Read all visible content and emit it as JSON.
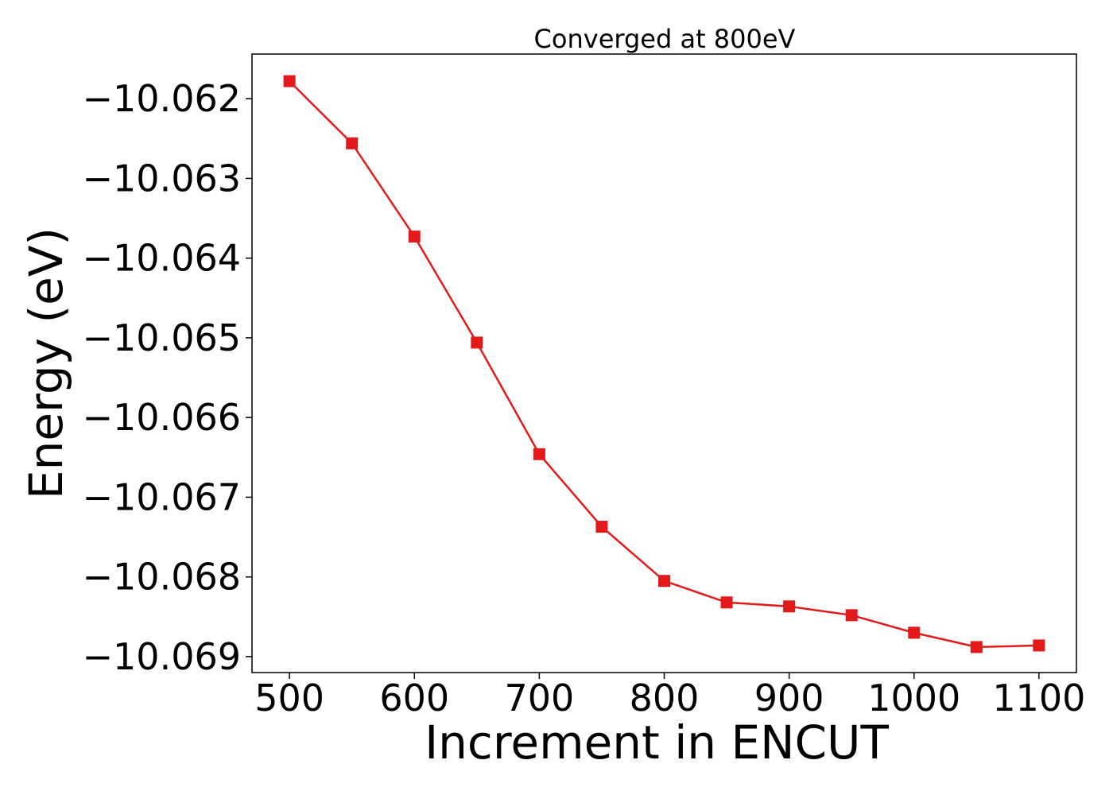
{
  "chart_data": {
    "type": "line",
    "title": "Converged at 800eV",
    "xlabel": "Increment in ENCUT",
    "ylabel": "Energy (eV)",
    "xlim": [
      470,
      1130
    ],
    "ylim": [
      -10.0692,
      -10.06144
    ],
    "xticks": [
      500,
      600,
      700,
      800,
      900,
      1000,
      1100
    ],
    "yticks": [
      -10.062,
      -10.063,
      -10.064,
      -10.065,
      -10.066,
      -10.067,
      -10.068,
      -10.069
    ],
    "ytick_labels": [
      "−10.062",
      "−10.063",
      "−10.064",
      "−10.065",
      "−10.066",
      "−10.067",
      "−10.068",
      "−10.069"
    ],
    "grid": false,
    "series": [
      {
        "color": "#e31a1c",
        "marker": "square",
        "x": [
          500,
          550,
          600,
          650,
          700,
          750,
          800,
          850,
          900,
          950,
          1000,
          1050,
          1100
        ],
        "y": [
          -10.06178,
          -10.06256,
          -10.06373,
          -10.06506,
          -10.06646,
          -10.06737,
          -10.06805,
          -10.06832,
          -10.06837,
          -10.06848,
          -10.0687,
          -10.06888,
          -10.06886
        ]
      }
    ]
  }
}
